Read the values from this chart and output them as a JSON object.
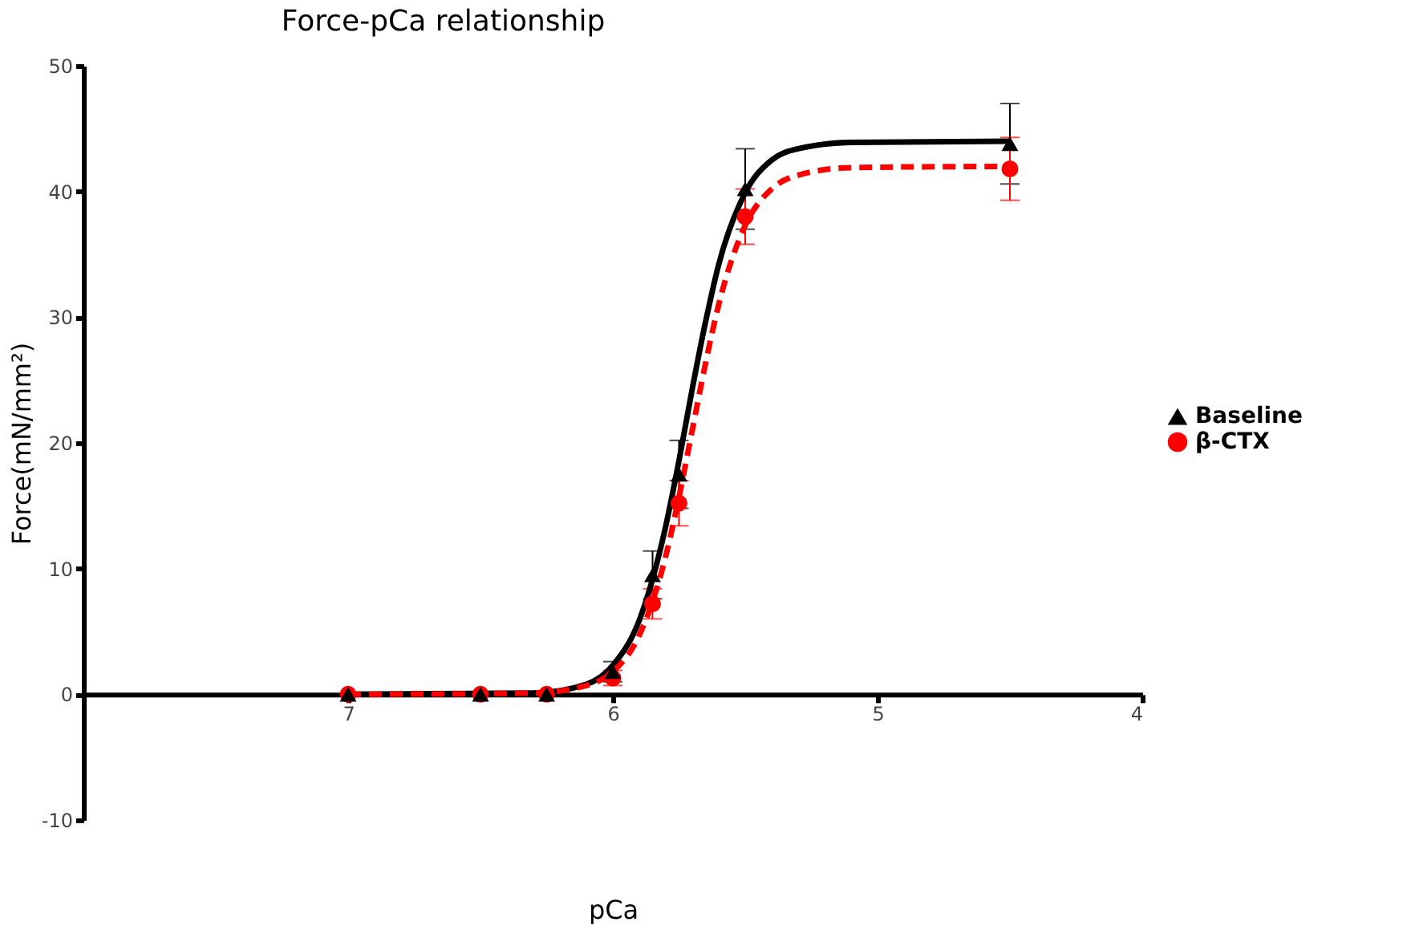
{
  "chart_data": {
    "type": "scatter",
    "title": "Force-pCa relationship",
    "xlabel": "pCa",
    "ylabel": "Force(mN/mm²)",
    "x": [
      7,
      6.5,
      6.25,
      6.0,
      5.85,
      5.75,
      5.5,
      4.5
    ],
    "xlim": [
      8,
      4
    ],
    "xticks": [
      7,
      6,
      5,
      4
    ],
    "ylim": [
      -10,
      50
    ],
    "yticks": [
      -10,
      0,
      10,
      20,
      30,
      40,
      50
    ],
    "grid": false,
    "legend": "right",
    "series": [
      {
        "name": "Baseline",
        "color": "#000000",
        "marker": "triangle",
        "values": [
          0,
          0,
          0,
          1.8,
          9.5,
          17.5,
          40.2,
          43.8
        ],
        "errors": [
          null,
          null,
          null,
          0.8,
          1.9,
          2.7,
          3.2,
          3.2
        ]
      },
      {
        "name": "β-CTX",
        "color": "#ff0000",
        "marker": "circle",
        "values": [
          0,
          0,
          0,
          1.3,
          7.2,
          15.2,
          38,
          41.8
        ],
        "errors": [
          null,
          null,
          null,
          0.6,
          1.2,
          1.8,
          2.2,
          2.5
        ]
      },
      {
        "type": "line",
        "color": "#000000",
        "line_style": "solid",
        "marker": "none",
        "x": [
          7,
          6.3,
          6.1,
          6.0,
          5.9,
          5.8,
          5.75,
          5.7,
          5.65,
          5.6,
          5.5,
          5.4,
          5.3,
          5.1,
          4.5
        ],
        "values": [
          0,
          0.1,
          0.8,
          2.3,
          5.9,
          13.4,
          18.6,
          24.3,
          29.6,
          34.2,
          39.9,
          42.5,
          43.4,
          43.9,
          44
        ]
      },
      {
        "type": "line",
        "color": "#ff0000",
        "line_style": "dashed",
        "marker": "none",
        "x": [
          7,
          6.3,
          6.1,
          6.0,
          5.9,
          5.8,
          5.75,
          5.7,
          5.65,
          5.6,
          5.5,
          5.4,
          5.3,
          5.1,
          4.5
        ],
        "values": [
          0,
          0.1,
          0.7,
          1.8,
          4.7,
          11.0,
          15.7,
          21,
          26.3,
          31.0,
          37.3,
          40.2,
          41.3,
          41.9,
          42
        ]
      }
    ]
  }
}
